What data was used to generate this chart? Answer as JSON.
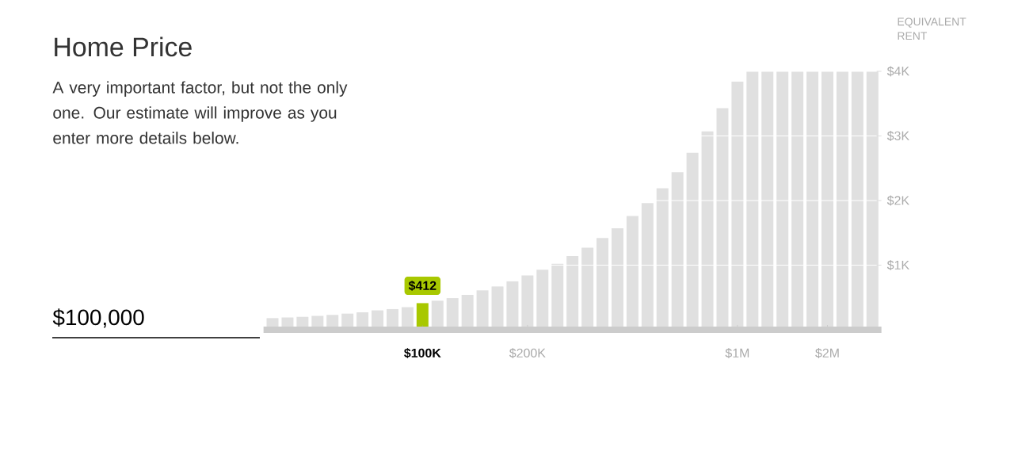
{
  "chart_data": {
    "type": "bar",
    "title": "Home Price",
    "subtitle": "A very important factor, but not the only one. Our estimate will improve as you enter more details below.",
    "ylabel": "EQUIVALENT RENT",
    "annotations": [
      "$100,000"
    ],
    "categories": [
      null,
      null,
      null,
      null,
      null,
      null,
      null,
      null,
      null,
      null,
      "$100K",
      null,
      null,
      null,
      null,
      null,
      null,
      "$200K",
      null,
      null,
      null,
      null,
      null,
      null,
      null,
      null,
      null,
      null,
      null,
      null,
      null,
      "$1M",
      null,
      null,
      null,
      null,
      null,
      "$2M",
      null,
      null,
      null
    ],
    "values": [
      180,
      190,
      200,
      215,
      230,
      250,
      270,
      300,
      320,
      350,
      412,
      450,
      490,
      540,
      610,
      670,
      750,
      840,
      930,
      1020,
      1140,
      1270,
      1420,
      1570,
      1760,
      1960,
      2190,
      2440,
      2740,
      3070,
      3430,
      3840,
      4000,
      4000,
      4000,
      4000,
      4000,
      4000,
      4000,
      4000,
      4000
    ],
    "colors": [
      "#e0e0e0",
      "#e0e0e0",
      "#e0e0e0",
      "#e0e0e0",
      "#e0e0e0",
      "#e0e0e0",
      "#e0e0e0",
      "#e0e0e0",
      "#e0e0e0",
      "#e0e0e0",
      "#a8c800",
      "#e0e0e0",
      "#e0e0e0",
      "#e0e0e0",
      "#e0e0e0",
      "#e0e0e0",
      "#e0e0e0",
      "#e0e0e0",
      "#e0e0e0",
      "#e0e0e0",
      "#e0e0e0",
      "#e0e0e0",
      "#e0e0e0",
      "#e0e0e0",
      "#e0e0e0",
      "#e0e0e0",
      "#e0e0e0",
      "#e0e0e0",
      "#e0e0e0",
      "#e0e0e0",
      "#e0e0e0",
      "#e0e0e0",
      "#e0e0e0",
      "#e0e0e0",
      "#e0e0e0",
      "#e0e0e0",
      "#e0e0e0",
      "#e0e0e0",
      "#e0e0e0",
      "#e0e0e0",
      "#e0e0e0"
    ],
    "value_labels": [
      null,
      null,
      null,
      null,
      null,
      null,
      null,
      null,
      null,
      null,
      "$412",
      null,
      null,
      null,
      null,
      null,
      null,
      null,
      null,
      null,
      null,
      null,
      null,
      null,
      null,
      null,
      null,
      null,
      null,
      null,
      null,
      null,
      null,
      null,
      null,
      null,
      null,
      null,
      null,
      null,
      null
    ],
    "ylim": [
      0,
      4000
    ],
    "yticks": [
      {
        "value": 1000,
        "label": "$1K"
      },
      {
        "value": 2000,
        "label": "$2K"
      },
      {
        "value": 3000,
        "label": "$3K"
      },
      {
        "value": 4000,
        "label": "$4K"
      }
    ],
    "grid": "y"
  }
}
